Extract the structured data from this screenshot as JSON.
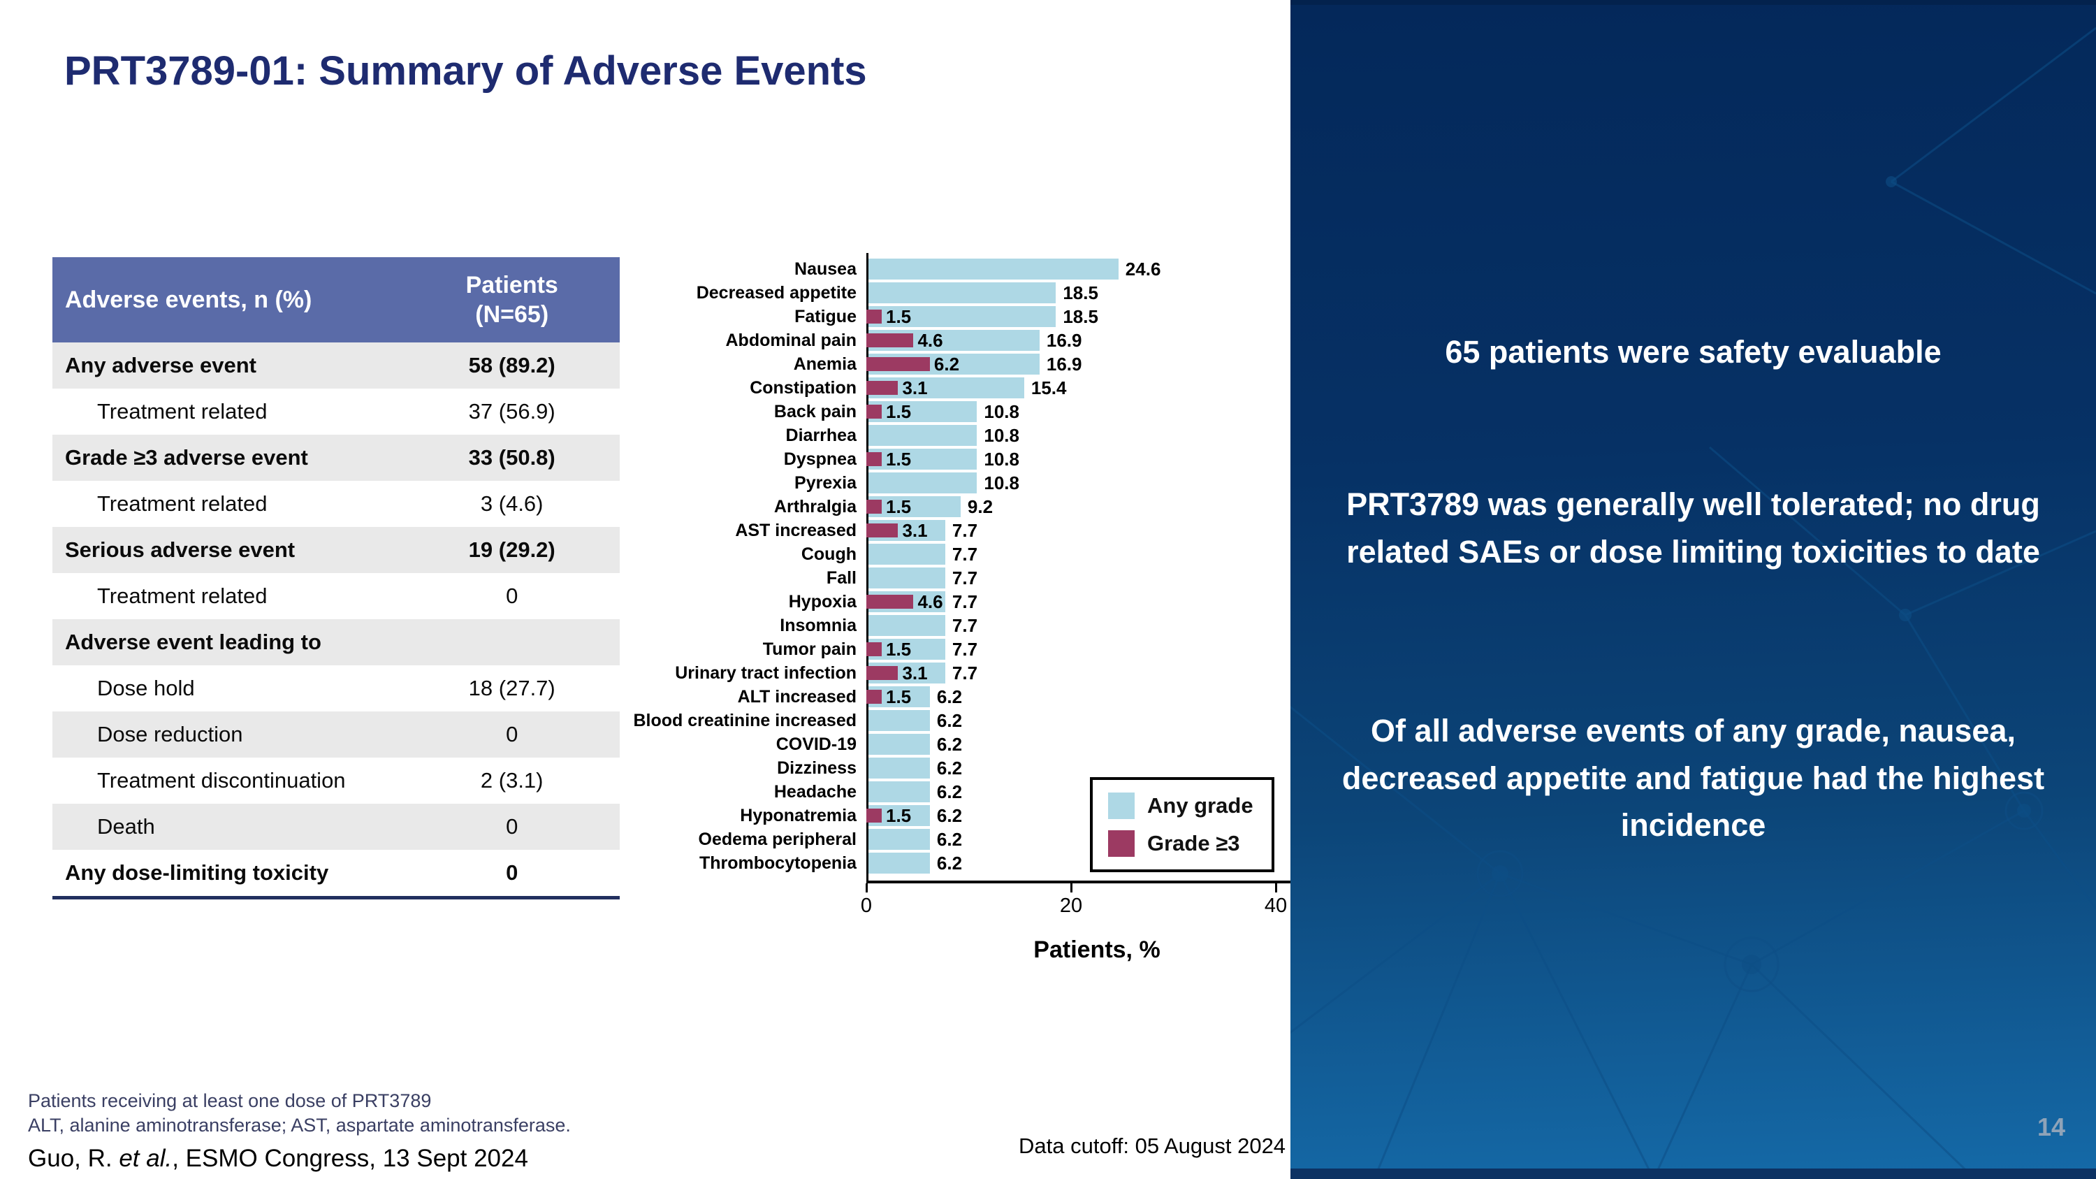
{
  "title": "PRT3789-01: Summary of Adverse Events",
  "table": {
    "header": {
      "events_col": "Adverse events, n (%)",
      "patients_line1": "Patients",
      "patients_line2": "(N=65)"
    },
    "rows": [
      {
        "label": "Any adverse event",
        "value": "58 (89.2)",
        "bold": true,
        "indent": false
      },
      {
        "label": "Treatment related",
        "value": "37 (56.9)",
        "bold": false,
        "indent": true
      },
      {
        "label": "Grade ≥3 adverse event",
        "value": "33 (50.8)",
        "bold": true,
        "indent": false
      },
      {
        "label": "Treatment related",
        "value": "3 (4.6)",
        "bold": false,
        "indent": true
      },
      {
        "label": "Serious adverse event",
        "value": "19 (29.2)",
        "bold": true,
        "indent": false
      },
      {
        "label": "Treatment related",
        "value": "0",
        "bold": false,
        "indent": true
      },
      {
        "label": "Adverse event leading to",
        "value": "",
        "bold": true,
        "indent": false
      },
      {
        "label": "Dose hold",
        "value": "18 (27.7)",
        "bold": false,
        "indent": true
      },
      {
        "label": "Dose reduction",
        "value": "0",
        "bold": false,
        "indent": true
      },
      {
        "label": "Treatment discontinuation",
        "value": "2 (3.1)",
        "bold": false,
        "indent": true
      },
      {
        "label": "Death",
        "value": "0",
        "bold": false,
        "indent": true
      },
      {
        "label": "Any dose-limiting toxicity",
        "value": "0",
        "bold": true,
        "indent": false
      }
    ]
  },
  "chart_data": {
    "type": "bar",
    "orientation": "horizontal",
    "title": "",
    "xlabel": "Patients, %",
    "xlim": [
      0,
      45
    ],
    "xticks": [
      "0",
      "20",
      "40"
    ],
    "grid": false,
    "legend_position": "inside-bottom-right",
    "categories": [
      "Nausea",
      "Decreased appetite",
      "Fatigue",
      "Abdominal pain",
      "Anemia",
      "Constipation",
      "Back pain",
      "Diarrhea",
      "Dyspnea",
      "Pyrexia",
      "Arthralgia",
      "AST increased",
      "Cough",
      "Fall",
      "Hypoxia",
      "Insomnia",
      "Tumor pain",
      "Urinary tract infection",
      "ALT increased",
      "Blood creatinine increased",
      "COVID-19",
      "Dizziness",
      "Headache",
      "Hyponatremia",
      "Oedema peripheral",
      "Thrombocytopenia"
    ],
    "series": [
      {
        "name": "Any grade",
        "color": "#AED8E5",
        "values": [
          24.6,
          18.5,
          18.5,
          16.9,
          16.9,
          15.4,
          10.8,
          10.8,
          10.8,
          10.8,
          9.2,
          7.7,
          7.7,
          7.7,
          7.7,
          7.7,
          7.7,
          7.7,
          6.2,
          6.2,
          6.2,
          6.2,
          6.2,
          6.2,
          6.2,
          6.2
        ]
      },
      {
        "name": "Grade ≥3",
        "color": "#9C3A62",
        "values": [
          null,
          null,
          1.5,
          4.6,
          6.2,
          3.1,
          1.5,
          null,
          1.5,
          null,
          1.5,
          3.1,
          null,
          null,
          4.6,
          null,
          1.5,
          3.1,
          1.5,
          null,
          null,
          null,
          null,
          1.5,
          null,
          null
        ]
      }
    ]
  },
  "sidebar": {
    "messages": [
      "65 patients were safety evaluable",
      "PRT3789 was generally well tolerated; no drug related SAEs or dose limiting toxicities to date",
      "Of all adverse events of any grade, nausea, decreased appetite and fatigue had the highest incidence"
    ],
    "page_number": "14"
  },
  "footnotes": [
    "Patients receiving at least one dose of PRT3789",
    "ALT, alanine aminotransferase; AST, aspartate aminotransferase."
  ],
  "citation": {
    "prefix": "Guo, R. ",
    "italic": "et al.",
    "suffix": ", ESMO Congress, 13 Sept 2024"
  },
  "data_cutoff": "Data cutoff: 05 August 2024",
  "colors": {
    "title_navy": "#1E2B70",
    "table_header_blue": "#5A6BA8",
    "table_row_shade": "#E9E9E9",
    "bar_any_grade": "#AED8E5",
    "bar_grade3": "#9C3A62",
    "panel_top": "#04285A",
    "panel_bottom": "#156AA8"
  }
}
